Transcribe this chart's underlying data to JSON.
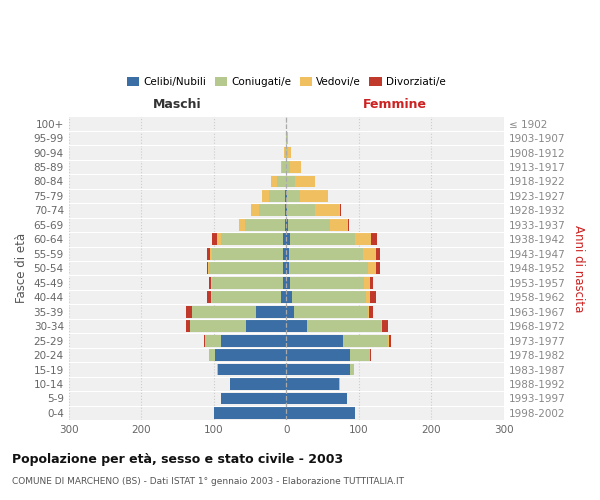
{
  "age_groups": [
    "0-4",
    "5-9",
    "10-14",
    "15-19",
    "20-24",
    "25-29",
    "30-34",
    "35-39",
    "40-44",
    "45-49",
    "50-54",
    "55-59",
    "60-64",
    "65-69",
    "70-74",
    "75-79",
    "80-84",
    "85-89",
    "90-94",
    "95-99",
    "100+"
  ],
  "birth_years": [
    "1998-2002",
    "1993-1997",
    "1988-1992",
    "1983-1987",
    "1978-1982",
    "1973-1977",
    "1968-1972",
    "1963-1967",
    "1958-1962",
    "1953-1957",
    "1948-1952",
    "1943-1947",
    "1938-1942",
    "1933-1937",
    "1928-1932",
    "1923-1927",
    "1918-1922",
    "1913-1917",
    "1908-1912",
    "1903-1907",
    "≤ 1902"
  ],
  "male_celibe": [
    100,
    90,
    78,
    94,
    98,
    90,
    55,
    42,
    8,
    5,
    4,
    5,
    5,
    2,
    2,
    2,
    1,
    1,
    0,
    0,
    0
  ],
  "male_coniugato": [
    0,
    0,
    0,
    2,
    8,
    22,
    78,
    88,
    95,
    98,
    102,
    98,
    85,
    55,
    35,
    22,
    12,
    5,
    2,
    0,
    0
  ],
  "male_vedovo": [
    0,
    0,
    0,
    0,
    0,
    0,
    0,
    0,
    1,
    1,
    2,
    2,
    5,
    8,
    12,
    10,
    8,
    2,
    1,
    0,
    0
  ],
  "male_divorziato": [
    0,
    0,
    0,
    0,
    1,
    2,
    5,
    8,
    5,
    3,
    2,
    5,
    8,
    0,
    0,
    0,
    0,
    0,
    0,
    0,
    0
  ],
  "female_nubile": [
    95,
    84,
    72,
    88,
    88,
    78,
    28,
    10,
    8,
    5,
    4,
    4,
    5,
    2,
    1,
    1,
    0,
    0,
    0,
    0,
    0
  ],
  "female_coniugata": [
    0,
    0,
    2,
    5,
    28,
    62,
    102,
    102,
    102,
    102,
    108,
    102,
    90,
    58,
    38,
    18,
    12,
    5,
    2,
    1,
    0
  ],
  "female_vedova": [
    0,
    0,
    0,
    0,
    0,
    1,
    2,
    2,
    5,
    8,
    12,
    18,
    22,
    25,
    35,
    38,
    28,
    15,
    5,
    1,
    0
  ],
  "female_divorziata": [
    0,
    0,
    0,
    0,
    1,
    3,
    8,
    5,
    8,
    5,
    5,
    5,
    8,
    2,
    1,
    1,
    0,
    0,
    0,
    0,
    0
  ],
  "color_celibe": "#3a6ea5",
  "color_coniugato": "#b5c98e",
  "color_vedovo": "#f0c060",
  "color_divorziato": "#c0392b",
  "xlim": 300,
  "title": "Popolazione per età, sesso e stato civile - 2003",
  "subtitle": "COMUNE DI MARCHENO (BS) - Dati ISTAT 1° gennaio 2003 - Elaborazione TUTTITALIA.IT",
  "ylabel_left": "Fasce di età",
  "ylabel_right": "Anni di nascita",
  "label_maschi": "Maschi",
  "label_femmine": "Femmine",
  "legend_labels": [
    "Celibi/Nubili",
    "Coniugati/e",
    "Vedovi/e",
    "Divorziati/e"
  ],
  "bg_color": "#ffffff",
  "plot_bg": "#f0f0f0",
  "xticks": [
    -300,
    -200,
    -100,
    0,
    100,
    200,
    300
  ],
  "xtick_labels": [
    "300",
    "200",
    "100",
    "0",
    "100",
    "200",
    "300"
  ]
}
